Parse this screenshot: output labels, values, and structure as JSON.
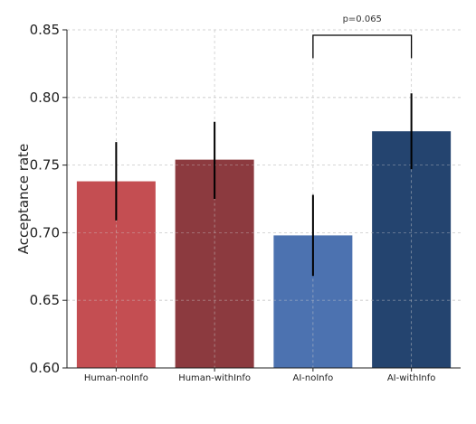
{
  "chart_data": {
    "type": "bar",
    "categories": [
      "Human-noInfo",
      "Human-withInfo",
      "AI-noInfo",
      "AI-withInfo"
    ],
    "values": [
      0.738,
      0.754,
      0.698,
      0.775
    ],
    "error_low": [
      0.709,
      0.725,
      0.668,
      0.747
    ],
    "error_high": [
      0.767,
      0.782,
      0.728,
      0.803
    ],
    "colors": [
      "#c44e52",
      "#8c3a3f",
      "#4c72b0",
      "#24446f"
    ],
    "ylabel": "Acceptance rate",
    "xlabel": "",
    "ylim": [
      0.6,
      0.85
    ],
    "yticks": [
      "0.60",
      "0.65",
      "0.70",
      "0.75",
      "0.80",
      "0.85"
    ],
    "grid": true,
    "annotations": [
      {
        "text": "p=0.065",
        "from_category": "AI-noInfo",
        "to_category": "AI-withInfo",
        "bracket_y": 0.846,
        "leg_bottom": 0.829
      }
    ]
  }
}
